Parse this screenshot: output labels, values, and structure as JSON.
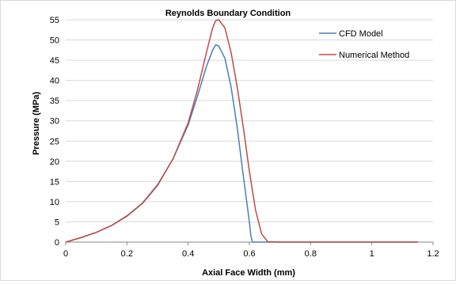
{
  "chart_data": {
    "type": "line",
    "title": "Reynolds Boundary Condition",
    "xlabel": "Axial Face Width (mm)",
    "ylabel": "Pressure (MPa)",
    "xlim": [
      0,
      1.2
    ],
    "ylim": [
      0,
      55
    ],
    "x_ticks": [
      "0",
      "0.2",
      "0.4",
      "0.6",
      "0.8",
      "1",
      "1.2"
    ],
    "y_ticks": [
      "0",
      "5",
      "10",
      "15",
      "20",
      "25",
      "30",
      "35",
      "40",
      "45",
      "50",
      "55"
    ],
    "grid": "horizontal",
    "legend_position": "top-right",
    "series": [
      {
        "name": "CFD Model",
        "color": "#4a7ebb",
        "points": [
          [
            0,
            0
          ],
          [
            0.05,
            1.1
          ],
          [
            0.1,
            2.4
          ],
          [
            0.15,
            4.1
          ],
          [
            0.2,
            6.5
          ],
          [
            0.25,
            9.6
          ],
          [
            0.3,
            14.2
          ],
          [
            0.35,
            20.5
          ],
          [
            0.4,
            29.0
          ],
          [
            0.43,
            36.0
          ],
          [
            0.46,
            43.5
          ],
          [
            0.48,
            47.5
          ],
          [
            0.49,
            48.8
          ],
          [
            0.5,
            48.5
          ],
          [
            0.52,
            45.5
          ],
          [
            0.54,
            38.5
          ],
          [
            0.56,
            28.5
          ],
          [
            0.58,
            16.5
          ],
          [
            0.6,
            5.0
          ],
          [
            0.605,
            1.5
          ],
          [
            0.61,
            0
          ],
          [
            0.65,
            0
          ],
          [
            0.8,
            0
          ],
          [
            1.0,
            0
          ],
          [
            1.15,
            0
          ]
        ]
      },
      {
        "name": "Numerical Method",
        "color": "#be4b48",
        "points": [
          [
            0,
            0
          ],
          [
            0.05,
            1.1
          ],
          [
            0.1,
            2.4
          ],
          [
            0.15,
            4.1
          ],
          [
            0.2,
            6.4
          ],
          [
            0.25,
            9.5
          ],
          [
            0.3,
            14.0
          ],
          [
            0.35,
            20.5
          ],
          [
            0.4,
            29.5
          ],
          [
            0.43,
            37.5
          ],
          [
            0.46,
            47.0
          ],
          [
            0.48,
            53.0
          ],
          [
            0.49,
            54.8
          ],
          [
            0.5,
            55.0
          ],
          [
            0.52,
            53.0
          ],
          [
            0.54,
            47.0
          ],
          [
            0.56,
            38.5
          ],
          [
            0.58,
            28.5
          ],
          [
            0.6,
            17.5
          ],
          [
            0.62,
            8.0
          ],
          [
            0.64,
            2.0
          ],
          [
            0.66,
            0.1
          ],
          [
            0.7,
            0
          ],
          [
            0.8,
            0
          ],
          [
            1.0,
            0
          ],
          [
            1.15,
            0
          ]
        ]
      }
    ]
  }
}
